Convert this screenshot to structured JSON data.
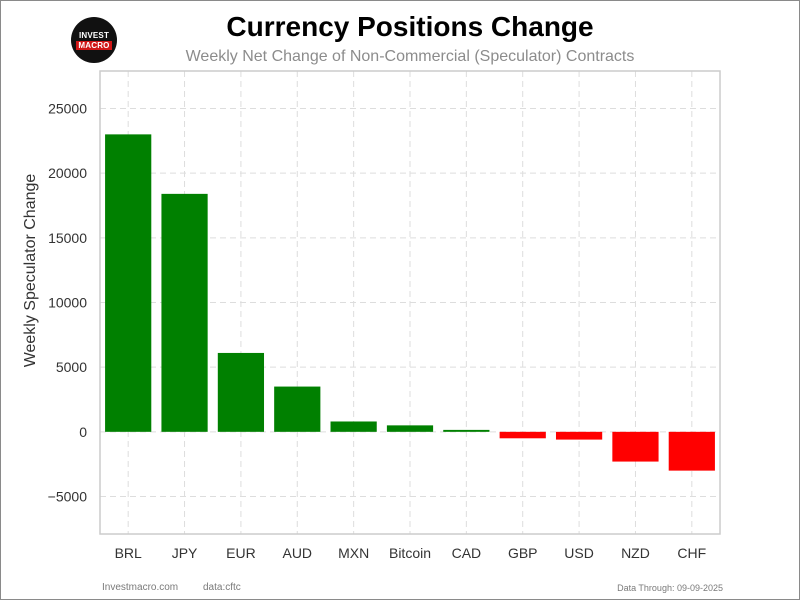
{
  "header": {
    "logo_line1": "INVEST",
    "logo_line2": "MACRO",
    "title": "Currency Positions Change",
    "subtitle": "Weekly Net Change of Non-Commercial (Speculator) Contracts"
  },
  "footer": {
    "site": "Investmacro.com",
    "source": "data:cftc",
    "date": "Data Through: 09-09-2025"
  },
  "colors": {
    "positive": "#008000",
    "negative": "#ff0000",
    "grid": "#dddddd",
    "axis_frame": "#cccccc"
  },
  "chart_data": {
    "type": "bar",
    "categories": [
      "BRL",
      "JPY",
      "EUR",
      "AUD",
      "MXN",
      "Bitcoin",
      "CAD",
      "GBP",
      "USD",
      "NZD",
      "CHF"
    ],
    "values": [
      23000,
      18400,
      6100,
      3500,
      800,
      500,
      150,
      -500,
      -600,
      -2300,
      -3000
    ],
    "ylabel": "Weekly Speculator Change",
    "xlabel": "",
    "ylim": [
      -7900,
      27900
    ],
    "yticks": [
      -5000,
      0,
      5000,
      10000,
      15000,
      20000,
      25000
    ],
    "ytick_labels": [
      "−5000",
      "0",
      "5000",
      "10000",
      "15000",
      "20000",
      "25000"
    ],
    "grid": true,
    "grid_style": "dashed",
    "legend": "none"
  }
}
